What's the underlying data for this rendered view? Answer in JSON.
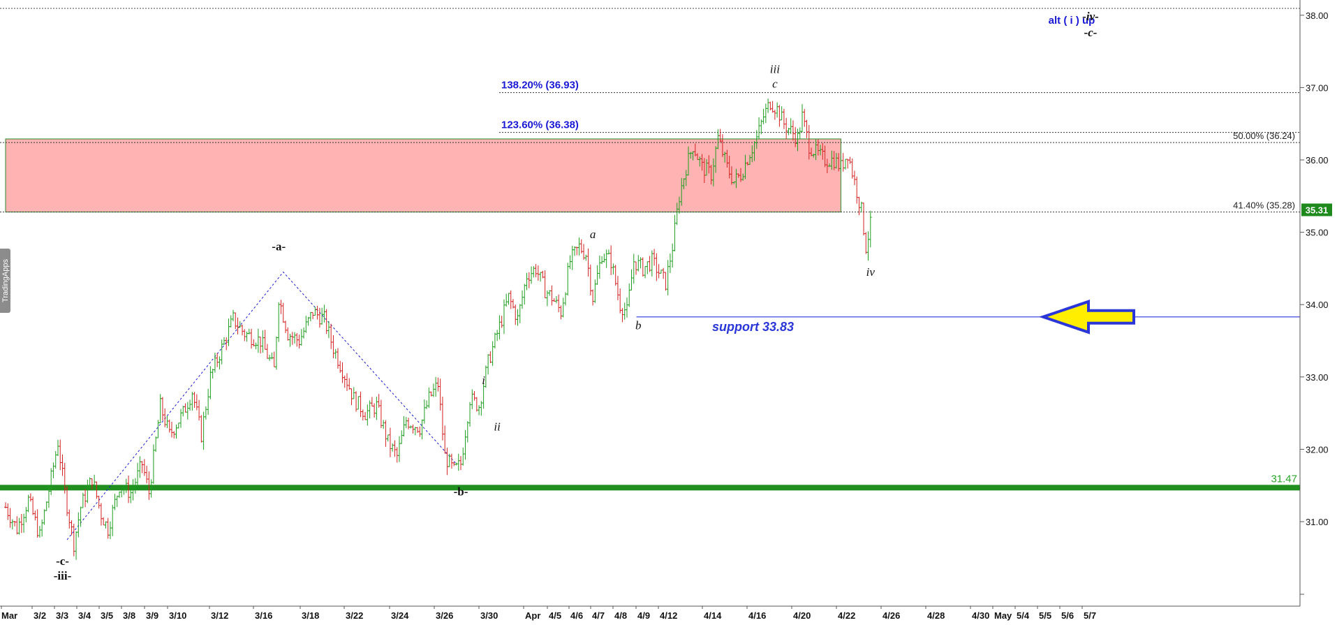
{
  "watermark": "TradingApps",
  "colors": {
    "up": "#1e9e1e",
    "down": "#d42020",
    "fib": "#1a1ad6",
    "wave": "#111111",
    "support": "#2a36d8",
    "green_line": "#1f8f1f",
    "zone_fill": "#ffb3b3",
    "last_price_bg": "#1e8a1e",
    "arrow_fill": "#ffee00",
    "arrow_stroke": "#2a36d8"
  },
  "chart_data": {
    "type": "candlestick",
    "ylim": [
      30.0,
      38.2
    ],
    "y_ticks": [
      "31.00",
      "32.00",
      "33.00",
      "34.00",
      "35.00",
      "36.00",
      "37.00",
      "38.00"
    ],
    "x_ticks": [
      "Mar",
      "3/2",
      "3/3",
      "3/4",
      "3/5",
      "3/8",
      "3/9",
      "3/10",
      "3/12",
      "3/16",
      "3/18",
      "3/22",
      "3/24",
      "3/26",
      "3/30",
      "Apr",
      "4/5",
      "4/6",
      "4/7",
      "4/8",
      "4/9",
      "4/12",
      "4/14",
      "4/16",
      "4/20",
      "4/22",
      "4/26",
      "4/28",
      "4/30",
      "May",
      "5/4",
      "5/5",
      "5/6",
      "5/7"
    ],
    "last_price": "35.31",
    "price_path": [
      [
        0,
        31.2
      ],
      [
        0.5,
        30.9
      ],
      [
        1,
        31.3
      ],
      [
        1.5,
        30.8
      ],
      [
        2.0,
        31.6
      ],
      [
        2.3,
        32.1
      ],
      [
        2.6,
        31.4
      ],
      [
        3.0,
        30.7
      ],
      [
        3.3,
        31.2
      ],
      [
        3.8,
        31.6
      ],
      [
        4.2,
        31.1
      ],
      [
        4.5,
        30.9
      ],
      [
        5.0,
        31.5
      ],
      [
        5.5,
        31.4
      ],
      [
        6.0,
        31.8
      ],
      [
        6.3,
        31.4
      ],
      [
        6.8,
        32.6
      ],
      [
        7.2,
        32.2
      ],
      [
        7.8,
        32.5
      ],
      [
        8.2,
        32.8
      ],
      [
        8.6,
        32.2
      ],
      [
        9.0,
        33.0
      ],
      [
        9.5,
        33.4
      ],
      [
        10.0,
        33.8
      ],
      [
        10.5,
        33.6
      ],
      [
        11.2,
        33.5
      ],
      [
        11.8,
        33.1
      ],
      [
        12.0,
        34.1
      ],
      [
        12.4,
        33.6
      ],
      [
        12.9,
        33.5
      ],
      [
        13.5,
        33.9
      ],
      [
        14.0,
        33.8
      ],
      [
        14.4,
        33.4
      ],
      [
        14.8,
        33.1
      ],
      [
        15.3,
        32.7
      ],
      [
        15.8,
        32.5
      ],
      [
        16.3,
        32.6
      ],
      [
        16.8,
        32.1
      ],
      [
        17.2,
        31.9
      ],
      [
        17.6,
        32.4
      ],
      [
        18.2,
        32.3
      ],
      [
        18.6,
        32.7
      ],
      [
        19.0,
        32.9
      ],
      [
        19.3,
        31.9
      ],
      [
        19.7,
        31.7
      ],
      [
        20.0,
        31.8
      ],
      [
        20.4,
        32.7
      ],
      [
        20.8,
        32.6
      ],
      [
        21.2,
        33.2
      ],
      [
        21.6,
        33.6
      ],
      [
        22.1,
        34.1
      ],
      [
        22.5,
        33.8
      ],
      [
        22.9,
        34.4
      ],
      [
        23.3,
        34.5
      ],
      [
        23.7,
        34.2
      ],
      [
        24.0,
        34.1
      ],
      [
        24.4,
        33.9
      ],
      [
        24.8,
        34.6
      ],
      [
        25.2,
        34.8
      ],
      [
        25.5,
        34.7
      ],
      [
        25.8,
        34.1
      ],
      [
        26.2,
        34.7
      ],
      [
        26.6,
        34.6
      ],
      [
        27.0,
        34.0
      ],
      [
        27.3,
        33.9
      ],
      [
        27.6,
        34.6
      ],
      [
        28.0,
        34.5
      ],
      [
        28.4,
        34.6
      ],
      [
        28.8,
        34.4
      ],
      [
        29.0,
        34.3
      ],
      [
        29.3,
        34.8
      ],
      [
        29.6,
        35.5
      ],
      [
        29.9,
        35.9
      ],
      [
        30.2,
        36.2
      ],
      [
        30.6,
        35.9
      ],
      [
        31.0,
        35.8
      ],
      [
        31.3,
        36.3
      ],
      [
        31.7,
        35.9
      ],
      [
        32.0,
        35.7
      ],
      [
        32.3,
        35.8
      ],
      [
        32.7,
        36.1
      ],
      [
        33.0,
        36.3
      ],
      [
        33.3,
        36.6
      ],
      [
        33.6,
        36.8
      ],
      [
        33.9,
        36.7
      ],
      [
        34.2,
        36.5
      ],
      [
        34.5,
        36.4
      ],
      [
        34.8,
        36.3
      ],
      [
        35.0,
        36.6
      ],
      [
        35.3,
        36.2
      ],
      [
        35.6,
        36.1
      ],
      [
        36.0,
        36.0
      ],
      [
        36.4,
        36.0
      ],
      [
        36.7,
        35.9
      ],
      [
        37.0,
        36.1
      ],
      [
        37.3,
        35.7
      ],
      [
        37.6,
        35.3
      ],
      [
        37.8,
        34.8
      ],
      [
        38.0,
        35.1
      ],
      [
        38.1,
        35.31
      ]
    ],
    "fib_levels": [
      {
        "label": "138.20% (36.93)",
        "value": 36.93
      },
      {
        "label": "123.60% (36.38)",
        "value": 36.38
      },
      {
        "label": "50.00% (36.24)",
        "value": 36.24
      },
      {
        "label": "41.40% (35.28)",
        "value": 35.28
      }
    ],
    "zone": {
      "from_x": 0,
      "to_x": 36.7,
      "top": 36.29,
      "bottom": 35.28
    },
    "green_line": {
      "label": "31.47",
      "value": 31.47
    },
    "support": {
      "label": "support 33.83",
      "value": 33.83,
      "from_x": 27.9
    },
    "wave_path": [
      [
        2.7,
        30.75
      ],
      [
        12.2,
        34.45
      ],
      [
        19.8,
        31.8
      ]
    ],
    "wave_labels": [
      {
        "text": "-c-",
        "x": 2.5,
        "y": 30.4,
        "italic": false
      },
      {
        "text": "-iii-",
        "x": 2.5,
        "y": 30.2,
        "italic": false
      },
      {
        "text": "-a-",
        "x": 12.0,
        "y": 34.75,
        "italic": false
      },
      {
        "text": "-b-",
        "x": 20.0,
        "y": 31.36,
        "italic": false
      },
      {
        "text": "i",
        "x": 21.0,
        "y": 32.9,
        "italic": true
      },
      {
        "text": "ii",
        "x": 21.6,
        "y": 32.26,
        "italic": true
      },
      {
        "text": "a",
        "x": 25.8,
        "y": 34.92,
        "italic": true
      },
      {
        "text": "b",
        "x": 27.8,
        "y": 33.66,
        "italic": true
      },
      {
        "text": "iii",
        "x": 33.8,
        "y": 37.2,
        "italic": true
      },
      {
        "text": "c",
        "x": 33.8,
        "y": 37.0,
        "italic": true
      },
      {
        "text": "iv",
        "x": 38.0,
        "y": 34.4,
        "italic": true
      }
    ],
    "corner_labels": {
      "alt": "alt ( i ) up",
      "wave_iv": "-iv-",
      "wave_c": "-c-"
    }
  }
}
